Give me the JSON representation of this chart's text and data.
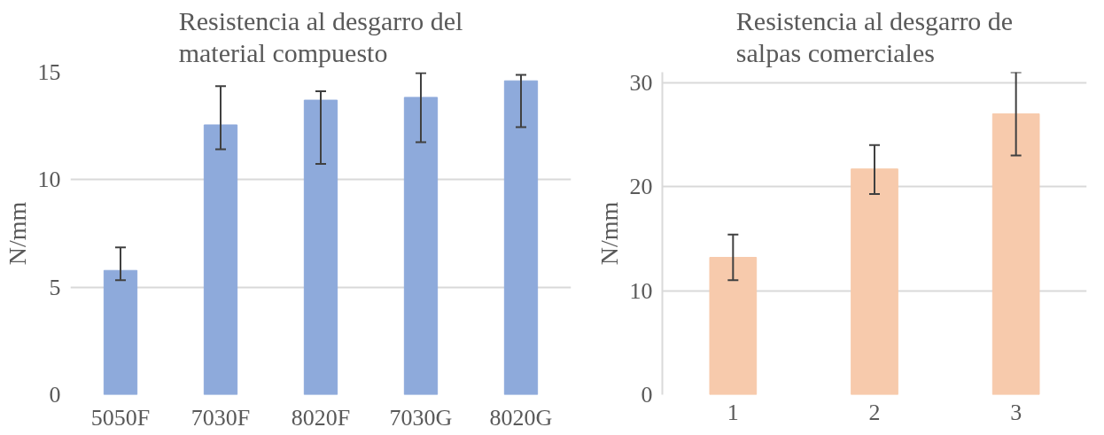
{
  "chart_data": [
    {
      "type": "bar",
      "title": "Resistencia al desgarro del material compuesto",
      "ylabel": "N/mm",
      "categories": [
        "5050F",
        "7030F",
        "8020F",
        "7030G",
        "8020G"
      ],
      "values": [
        5.78,
        12.55,
        13.7,
        13.83,
        14.6
      ],
      "color": "#8eaadb",
      "errors": [
        [
          5.33,
          6.85
        ],
        [
          11.41,
          14.35
        ],
        [
          10.74,
          14.11
        ],
        [
          11.74,
          14.96
        ],
        [
          12.45,
          14.88
        ]
      ],
      "ylim": [
        0,
        15
      ],
      "yticks": [
        0,
        5,
        10,
        15
      ],
      "grid": "y"
    },
    {
      "type": "bar",
      "title": "Resistencia al desgarro de salpas comerciales",
      "ylabel": "N/mm",
      "categories": [
        "1",
        "2",
        "3"
      ],
      "values": [
        13.2,
        21.7,
        27.0
      ],
      "color": "#f7caac",
      "errors": [
        [
          11.0,
          15.4
        ],
        [
          19.3,
          24.0
        ],
        [
          23.0,
          31.0
        ]
      ],
      "ylim": [
        0,
        31
      ],
      "yticks": [
        0,
        10,
        20,
        30
      ],
      "grid": "y"
    }
  ]
}
